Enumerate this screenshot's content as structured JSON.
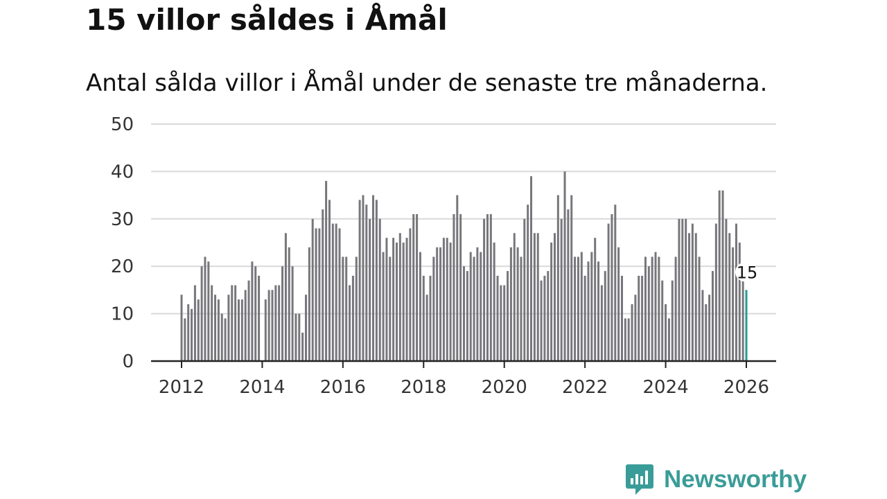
{
  "title": "15 villor såldes i Åmål",
  "subtitle": "Antal sålda villor i Åmål under de senaste tre månaderna.",
  "logo": {
    "text": "Newsworthy",
    "icon": "newsworthy-logo-icon"
  },
  "colors": {
    "bar": "#77767b",
    "highlight": "#269a97",
    "grid": "#d9d9d9",
    "axis": "#222222",
    "brand": "#3a9c98"
  },
  "chart_data": {
    "type": "bar",
    "title": "15 villor såldes i Åmål",
    "subtitle": "Antal sålda villor i Åmål under de senaste tre månaderna.",
    "xlabel": "",
    "ylabel": "",
    "ylim": [
      0,
      50
    ],
    "yticks": [
      0,
      10,
      20,
      30,
      40,
      50
    ],
    "xticks": [
      "2012",
      "2014",
      "2016",
      "2018",
      "2020",
      "2022",
      "2024",
      "2026"
    ],
    "start": "2012-01",
    "end": "2026-01",
    "frequency": "monthly",
    "highlight": {
      "period": "2026-01",
      "value": 15,
      "label": "15"
    },
    "values": [
      14,
      9,
      12,
      11,
      16,
      13,
      20,
      22,
      21,
      16,
      14,
      13,
      10,
      9,
      14,
      16,
      16,
      13,
      13,
      15,
      17,
      21,
      20,
      18,
      0,
      13,
      15,
      15,
      16,
      16,
      20,
      27,
      24,
      20,
      10,
      10,
      6,
      14,
      24,
      30,
      28,
      28,
      32,
      38,
      34,
      29,
      29,
      28,
      22,
      22,
      16,
      18,
      22,
      34,
      35,
      33,
      30,
      35,
      34,
      30,
      23,
      26,
      22,
      26,
      25,
      27,
      25,
      26,
      28,
      31,
      31,
      23,
      18,
      14,
      18,
      22,
      24,
      24,
      26,
      26,
      25,
      31,
      35,
      31,
      20,
      19,
      23,
      22,
      24,
      23,
      30,
      31,
      31,
      25,
      18,
      16,
      16,
      19,
      24,
      27,
      24,
      22,
      30,
      33,
      39,
      27,
      27,
      17,
      18,
      19,
      25,
      27,
      35,
      30,
      40,
      32,
      35,
      22,
      22,
      23,
      18,
      21,
      23,
      26,
      21,
      16,
      19,
      29,
      31,
      33,
      24,
      18,
      9,
      9,
      12,
      14,
      18,
      18,
      22,
      20,
      22,
      23,
      22,
      17,
      12,
      9,
      17,
      22,
      30,
      30,
      30,
      27,
      29,
      27,
      22,
      15,
      12,
      14,
      19,
      29,
      36,
      36,
      30,
      27,
      24,
      29,
      25,
      17,
      15
    ]
  }
}
